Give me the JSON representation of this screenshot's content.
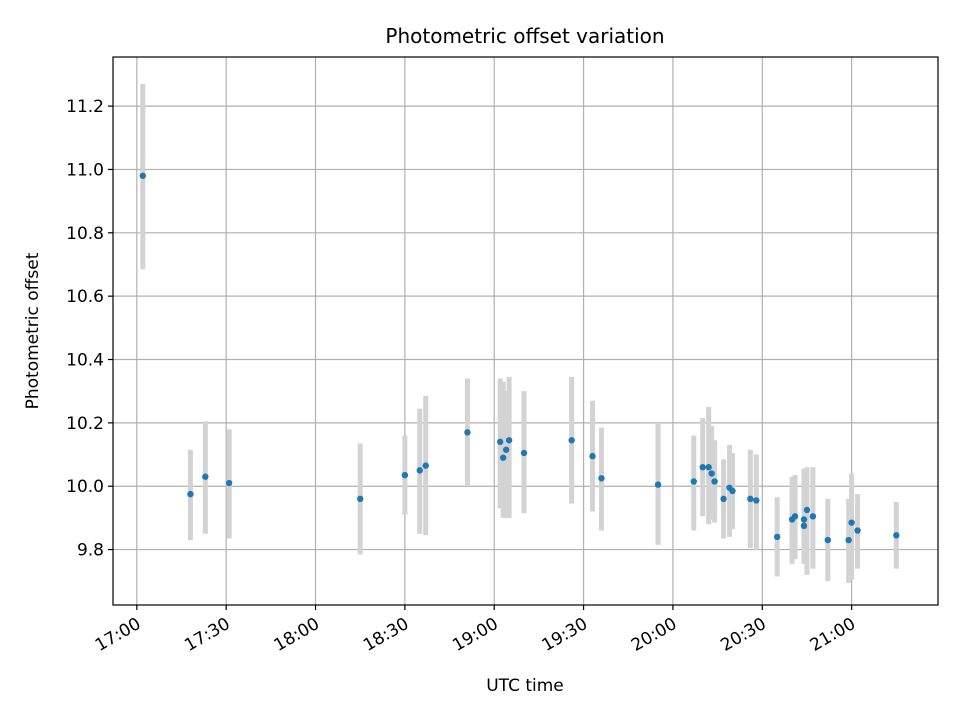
{
  "chart_data": {
    "type": "scatter",
    "title": "Photometric offset variation",
    "xlabel": "UTC time",
    "ylabel": "Photometric offset",
    "xlim": [
      "16:52",
      "21:29"
    ],
    "ylim": [
      9.625,
      11.355
    ],
    "grid": true,
    "x_ticks": [
      "17:00",
      "17:30",
      "18:00",
      "18:30",
      "19:00",
      "19:30",
      "20:00",
      "20:30",
      "21:00"
    ],
    "y_ticks": [
      "9.8",
      "10.0",
      "10.2",
      "10.4",
      "10.6",
      "10.8",
      "11.0",
      "11.2"
    ],
    "colors": {
      "point": "#1f77b4",
      "errorbar": "#d3d3d3",
      "grid": "#b0b0b0"
    },
    "series": [
      {
        "points": [
          {
            "x": "17:02",
            "y": 10.98,
            "ylo": 10.685,
            "yhi": 11.27
          },
          {
            "x": "17:18",
            "y": 9.975,
            "ylo": 9.83,
            "yhi": 10.115
          },
          {
            "x": "17:23",
            "y": 10.03,
            "ylo": 9.85,
            "yhi": 10.205
          },
          {
            "x": "17:31",
            "y": 10.01,
            "ylo": 9.835,
            "yhi": 10.18
          },
          {
            "x": "18:15",
            "y": 9.96,
            "ylo": 9.785,
            "yhi": 10.135
          },
          {
            "x": "18:30",
            "y": 10.035,
            "ylo": 9.91,
            "yhi": 10.16
          },
          {
            "x": "18:35",
            "y": 10.05,
            "ylo": 9.85,
            "yhi": 10.245
          },
          {
            "x": "18:37",
            "y": 10.065,
            "ylo": 9.845,
            "yhi": 10.285
          },
          {
            "x": "18:51",
            "y": 10.17,
            "ylo": 10.0,
            "yhi": 10.34
          },
          {
            "x": "19:02",
            "y": 10.14,
            "ylo": 9.93,
            "yhi": 10.34
          },
          {
            "x": "19:03",
            "y": 10.09,
            "ylo": 9.9,
            "yhi": 10.33
          },
          {
            "x": "19:04",
            "y": 10.115,
            "ylo": 9.9,
            "yhi": 10.3
          },
          {
            "x": "19:05",
            "y": 10.145,
            "ylo": 9.9,
            "yhi": 10.345
          },
          {
            "x": "19:10",
            "y": 10.105,
            "ylo": 9.915,
            "yhi": 10.3
          },
          {
            "x": "19:26",
            "y": 10.145,
            "ylo": 9.945,
            "yhi": 10.345
          },
          {
            "x": "19:33",
            "y": 10.095,
            "ylo": 9.92,
            "yhi": 10.27
          },
          {
            "x": "19:36",
            "y": 10.025,
            "ylo": 9.86,
            "yhi": 10.185
          },
          {
            "x": "19:55",
            "y": 10.005,
            "ylo": 9.815,
            "yhi": 10.2
          },
          {
            "x": "20:07",
            "y": 10.015,
            "ylo": 9.86,
            "yhi": 10.16
          },
          {
            "x": "20:10",
            "y": 10.06,
            "ylo": 9.905,
            "yhi": 10.215
          },
          {
            "x": "20:12",
            "y": 10.06,
            "ylo": 9.88,
            "yhi": 10.25
          },
          {
            "x": "20:13",
            "y": 10.04,
            "ylo": 9.895,
            "yhi": 10.19
          },
          {
            "x": "20:14",
            "y": 10.015,
            "ylo": 9.885,
            "yhi": 10.145
          },
          {
            "x": "20:17",
            "y": 9.96,
            "ylo": 9.835,
            "yhi": 10.085
          },
          {
            "x": "20:19",
            "y": 9.995,
            "ylo": 9.84,
            "yhi": 10.13
          },
          {
            "x": "20:20",
            "y": 9.985,
            "ylo": 9.865,
            "yhi": 10.105
          },
          {
            "x": "20:26",
            "y": 9.96,
            "ylo": 9.805,
            "yhi": 10.115
          },
          {
            "x": "20:28",
            "y": 9.955,
            "ylo": 9.8,
            "yhi": 10.1
          },
          {
            "x": "20:35",
            "y": 9.84,
            "ylo": 9.715,
            "yhi": 9.965
          },
          {
            "x": "20:40",
            "y": 9.895,
            "ylo": 9.755,
            "yhi": 10.03
          },
          {
            "x": "20:41",
            "y": 9.905,
            "ylo": 9.77,
            "yhi": 10.035
          },
          {
            "x": "20:44",
            "y": 9.875,
            "ylo": 9.755,
            "yhi": 10.04
          },
          {
            "x": "20:44",
            "y": 9.895,
            "ylo": 9.76,
            "yhi": 10.055
          },
          {
            "x": "20:45",
            "y": 9.925,
            "ylo": 9.72,
            "yhi": 10.06
          },
          {
            "x": "20:47",
            "y": 9.905,
            "ylo": 9.74,
            "yhi": 10.06
          },
          {
            "x": "20:52",
            "y": 9.83,
            "ylo": 9.7,
            "yhi": 9.96
          },
          {
            "x": "20:59",
            "y": 9.83,
            "ylo": 9.695,
            "yhi": 9.96
          },
          {
            "x": "21:00",
            "y": 9.885,
            "ylo": 9.705,
            "yhi": 10.04
          },
          {
            "x": "21:02",
            "y": 9.86,
            "ylo": 9.74,
            "yhi": 9.975
          },
          {
            "x": "21:15",
            "y": 9.845,
            "ylo": 9.74,
            "yhi": 9.95
          }
        ]
      }
    ]
  }
}
